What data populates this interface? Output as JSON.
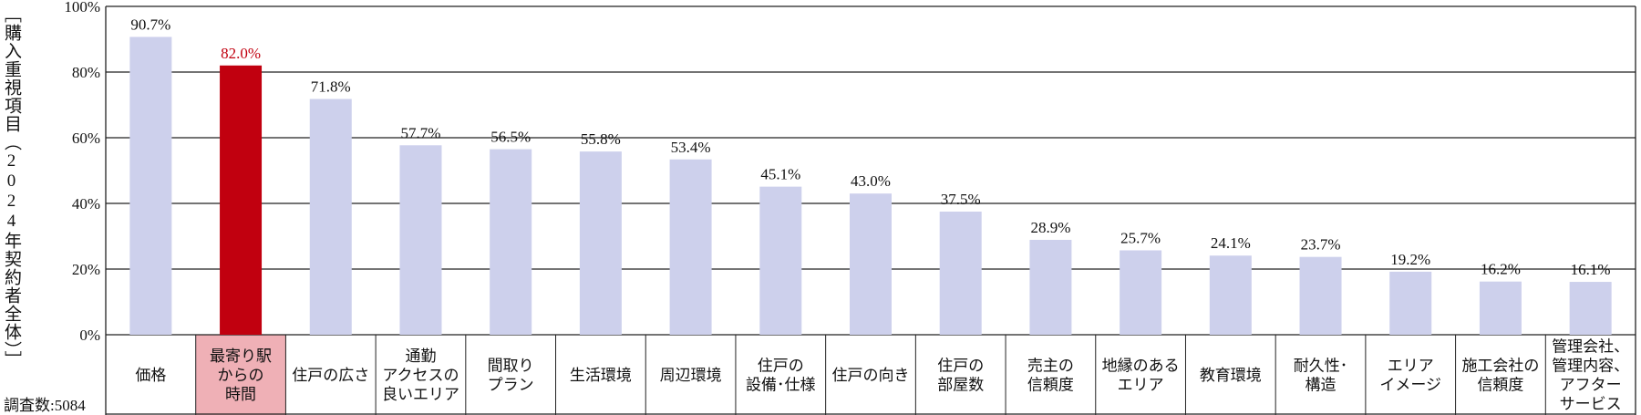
{
  "chart_data": {
    "type": "bar",
    "ylabel": "［購入重視項目（2024年契約者全体）］",
    "ylim": [
      0,
      100
    ],
    "yticks": [
      "0%",
      "20%",
      "40%",
      "60%",
      "80%",
      "100%"
    ],
    "grid": true,
    "highlight_index": 1,
    "colors": {
      "bar": "#cdd0ec",
      "highlight": "#c1000f",
      "highlight_cell": "#efb0b6",
      "highlight_text": "#c1000f"
    },
    "categories": [
      [
        "価格"
      ],
      [
        "最寄り駅",
        "からの",
        "時間"
      ],
      [
        "住戸の広さ"
      ],
      [
        "通勤",
        "アクセスの",
        "良いエリア"
      ],
      [
        "間取り",
        "プラン"
      ],
      [
        "生活環境"
      ],
      [
        "周辺環境"
      ],
      [
        "住戸の",
        "設備･仕様"
      ],
      [
        "住戸の向き"
      ],
      [
        "住戸の",
        "部屋数"
      ],
      [
        "売主の",
        "信頼度"
      ],
      [
        "地縁のある",
        "エリア"
      ],
      [
        "教育環境"
      ],
      [
        "耐久性･",
        "構造"
      ],
      [
        "エリア",
        "イメージ"
      ],
      [
        "施工会社の",
        "信頼度"
      ],
      [
        "管理会社、",
        "管理内容、",
        "アフター",
        "サービス"
      ]
    ],
    "values": [
      90.7,
      82.0,
      71.8,
      57.7,
      56.5,
      55.8,
      53.4,
      45.1,
      43.0,
      37.5,
      28.9,
      25.7,
      24.1,
      23.7,
      19.2,
      16.2,
      16.1
    ],
    "value_labels": [
      "90.7%",
      "82.0%",
      "71.8%",
      "57.7%",
      "56.5%",
      "55.8%",
      "53.4%",
      "45.1%",
      "43.0%",
      "37.5%",
      "28.9%",
      "25.7%",
      "24.1%",
      "23.7%",
      "19.2%",
      "16.2%",
      "16.1%"
    ]
  },
  "note": "調査数:5084"
}
